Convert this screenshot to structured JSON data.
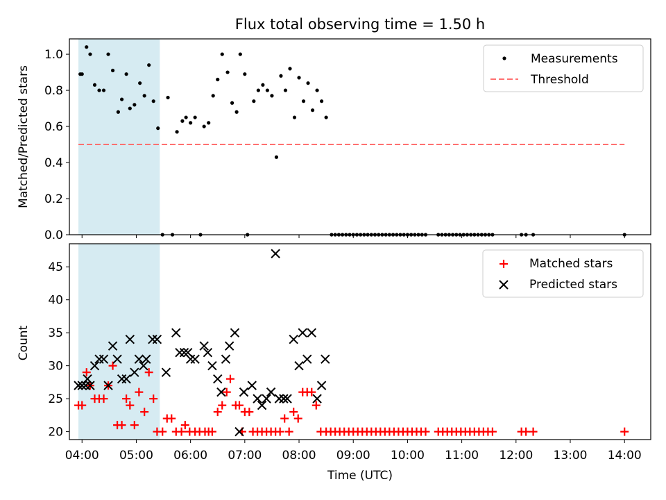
{
  "title": "Flux total observing time = 1.50 h",
  "colors": {
    "measurements": "#000000",
    "threshold": "#ff7070",
    "matched": "#ff0000",
    "predicted": "#000000",
    "shade": "#add8e6"
  },
  "chart_data": [
    {
      "type": "scatter",
      "ylabel": "Matched/Predicted stars",
      "xlim": [
        "03:46",
        "14:29"
      ],
      "ylim": [
        0,
        1.085
      ],
      "yticks": [
        "0.0",
        "0.2",
        "0.4",
        "0.6",
        "0.8",
        "1.0"
      ],
      "grid": false,
      "legend_position": "top-right",
      "shaded_region": [
        "03:56",
        "05:26"
      ],
      "series": [
        {
          "name": "Measurements",
          "marker": "dot",
          "points": [
            [
              "03:58",
              0.89
            ],
            [
              "04:00",
              0.89
            ],
            [
              "04:05",
              1.04
            ],
            [
              "04:09",
              1.0
            ],
            [
              "04:14",
              0.83
            ],
            [
              "04:19",
              0.8
            ],
            [
              "04:24",
              0.8
            ],
            [
              "04:29",
              1.0
            ],
            [
              "04:34",
              0.91
            ],
            [
              "04:40",
              0.68
            ],
            [
              "04:44",
              0.75
            ],
            [
              "04:49",
              0.89
            ],
            [
              "04:53",
              0.7
            ],
            [
              "04:58",
              0.72
            ],
            [
              "05:04",
              0.84
            ],
            [
              "05:09",
              0.77
            ],
            [
              "05:14",
              0.94
            ],
            [
              "05:19",
              0.74
            ],
            [
              "05:24",
              0.59
            ],
            [
              "05:29",
              0.0
            ],
            [
              "05:35",
              0.76
            ],
            [
              "05:40",
              0.0
            ],
            [
              "05:45",
              0.57
            ],
            [
              "05:51",
              0.63
            ],
            [
              "05:55",
              0.65
            ],
            [
              "06:00",
              0.62
            ],
            [
              "06:05",
              0.65
            ],
            [
              "06:11",
              0.0
            ],
            [
              "06:15",
              0.6
            ],
            [
              "06:20",
              0.62
            ],
            [
              "06:25",
              0.77
            ],
            [
              "06:30",
              0.86
            ],
            [
              "06:35",
              1.0
            ],
            [
              "06:41",
              0.9
            ],
            [
              "06:46",
              0.73
            ],
            [
              "06:51",
              0.68
            ],
            [
              "06:55",
              1.0
            ],
            [
              "07:00",
              0.89
            ],
            [
              "07:03",
              0.0
            ],
            [
              "07:10",
              0.74
            ],
            [
              "07:15",
              0.8
            ],
            [
              "07:20",
              0.83
            ],
            [
              "07:25",
              0.8
            ],
            [
              "07:30",
              0.77
            ],
            [
              "07:35",
              0.43
            ],
            [
              "07:40",
              0.88
            ],
            [
              "07:45",
              0.8
            ],
            [
              "07:50",
              0.92
            ],
            [
              "07:55",
              0.65
            ],
            [
              "08:00",
              0.87
            ],
            [
              "08:05",
              0.74
            ],
            [
              "08:10",
              0.84
            ],
            [
              "08:15",
              0.69
            ],
            [
              "08:20",
              0.8
            ],
            [
              "08:25",
              0.74
            ],
            [
              "08:30",
              0.65
            ],
            [
              "08:36",
              0.0
            ],
            [
              "08:40",
              0.0
            ],
            [
              "08:44",
              0.0
            ],
            [
              "08:48",
              0.0
            ],
            [
              "08:52",
              0.0
            ],
            [
              "08:56",
              0.0
            ],
            [
              "09:00",
              0.0
            ],
            [
              "09:04",
              0.0
            ],
            [
              "09:08",
              0.0
            ],
            [
              "09:12",
              0.0
            ],
            [
              "09:16",
              0.0
            ],
            [
              "09:20",
              0.0
            ],
            [
              "09:24",
              0.0
            ],
            [
              "09:28",
              0.0
            ],
            [
              "09:32",
              0.0
            ],
            [
              "09:36",
              0.0
            ],
            [
              "09:40",
              0.0
            ],
            [
              "09:44",
              0.0
            ],
            [
              "09:48",
              0.0
            ],
            [
              "09:52",
              0.0
            ],
            [
              "09:56",
              0.0
            ],
            [
              "10:00",
              0.0
            ],
            [
              "10:04",
              0.0
            ],
            [
              "10:08",
              0.0
            ],
            [
              "10:12",
              0.0
            ],
            [
              "10:16",
              0.0
            ],
            [
              "10:20",
              0.0
            ],
            [
              "10:34",
              0.0
            ],
            [
              "10:38",
              0.0
            ],
            [
              "10:42",
              0.0
            ],
            [
              "10:46",
              0.0
            ],
            [
              "10:50",
              0.0
            ],
            [
              "10:54",
              0.0
            ],
            [
              "10:58",
              0.0
            ],
            [
              "11:02",
              0.0
            ],
            [
              "11:06",
              0.0
            ],
            [
              "11:10",
              0.0
            ],
            [
              "11:14",
              0.0
            ],
            [
              "11:18",
              0.0
            ],
            [
              "11:22",
              0.0
            ],
            [
              "11:26",
              0.0
            ],
            [
              "11:30",
              0.0
            ],
            [
              "11:34",
              0.0
            ],
            [
              "12:06",
              0.0
            ],
            [
              "12:11",
              0.0
            ],
            [
              "12:19",
              0.0
            ],
            [
              "14:00",
              0.0
            ]
          ]
        },
        {
          "name": "Threshold",
          "marker": "dashed-line",
          "points": [
            [
              "03:56",
              0.5
            ],
            [
              "14:00",
              0.5
            ]
          ]
        }
      ]
    },
    {
      "type": "scatter",
      "ylabel": "Count",
      "xlabel": "Time (UTC)",
      "xlim": [
        "03:46",
        "14:29"
      ],
      "ylim": [
        18.8,
        48.5
      ],
      "yticks": [
        "20",
        "25",
        "30",
        "35",
        "40",
        "45"
      ],
      "xticks": [
        "04:00",
        "05:00",
        "06:00",
        "07:00",
        "08:00",
        "09:00",
        "10:00",
        "11:00",
        "12:00",
        "13:00",
        "14:00"
      ],
      "grid": false,
      "legend_position": "top-right",
      "shaded_region": [
        "03:56",
        "05:26"
      ],
      "series": [
        {
          "name": "Matched stars",
          "marker": "plus",
          "points": [
            [
              "03:56",
              24
            ],
            [
              "04:00",
              24
            ],
            [
              "04:05",
              29
            ],
            [
              "04:09",
              27
            ],
            [
              "04:14",
              25
            ],
            [
              "04:19",
              25
            ],
            [
              "04:24",
              25
            ],
            [
              "04:29",
              27
            ],
            [
              "04:34",
              30
            ],
            [
              "04:39",
              21
            ],
            [
              "04:44",
              21
            ],
            [
              "04:49",
              25
            ],
            [
              "04:53",
              24
            ],
            [
              "04:58",
              21
            ],
            [
              "05:03",
              26
            ],
            [
              "05:09",
              23
            ],
            [
              "05:14",
              29
            ],
            [
              "05:19",
              25
            ],
            [
              "05:23",
              20
            ],
            [
              "05:29",
              20
            ],
            [
              "05:34",
              22
            ],
            [
              "05:39",
              22
            ],
            [
              "05:44",
              20
            ],
            [
              "05:50",
              20
            ],
            [
              "05:54",
              21
            ],
            [
              "05:59",
              20
            ],
            [
              "06:05",
              20
            ],
            [
              "06:10",
              20
            ],
            [
              "06:16",
              20
            ],
            [
              "06:20",
              20
            ],
            [
              "06:24",
              20
            ],
            [
              "06:30",
              23
            ],
            [
              "06:35",
              24
            ],
            [
              "06:40",
              26
            ],
            [
              "06:44",
              28
            ],
            [
              "06:50",
              24
            ],
            [
              "06:54",
              24
            ],
            [
              "06:57",
              20
            ],
            [
              "07:00",
              23
            ],
            [
              "07:05",
              23
            ],
            [
              "07:09",
              20
            ],
            [
              "07:14",
              20
            ],
            [
              "07:19",
              20
            ],
            [
              "07:24",
              20
            ],
            [
              "07:29",
              20
            ],
            [
              "07:34",
              20
            ],
            [
              "07:39",
              20
            ],
            [
              "07:44",
              22
            ],
            [
              "07:49",
              20
            ],
            [
              "07:54",
              23
            ],
            [
              "07:59",
              22
            ],
            [
              "08:04",
              26
            ],
            [
              "08:09",
              26
            ],
            [
              "08:14",
              26
            ],
            [
              "08:19",
              24
            ],
            [
              "08:24",
              20
            ],
            [
              "08:30",
              20
            ],
            [
              "08:35",
              20
            ],
            [
              "08:40",
              20
            ],
            [
              "08:45",
              20
            ],
            [
              "08:50",
              20
            ],
            [
              "08:55",
              20
            ],
            [
              "09:00",
              20
            ],
            [
              "09:05",
              20
            ],
            [
              "09:10",
              20
            ],
            [
              "09:15",
              20
            ],
            [
              "09:20",
              20
            ],
            [
              "09:25",
              20
            ],
            [
              "09:30",
              20
            ],
            [
              "09:35",
              20
            ],
            [
              "09:40",
              20
            ],
            [
              "09:45",
              20
            ],
            [
              "09:50",
              20
            ],
            [
              "09:55",
              20
            ],
            [
              "10:00",
              20
            ],
            [
              "10:05",
              20
            ],
            [
              "10:10",
              20
            ],
            [
              "10:15",
              20
            ],
            [
              "10:20",
              20
            ],
            [
              "10:34",
              20
            ],
            [
              "10:39",
              20
            ],
            [
              "10:44",
              20
            ],
            [
              "10:49",
              20
            ],
            [
              "10:54",
              20
            ],
            [
              "10:59",
              20
            ],
            [
              "11:04",
              20
            ],
            [
              "11:09",
              20
            ],
            [
              "11:14",
              20
            ],
            [
              "11:19",
              20
            ],
            [
              "11:24",
              20
            ],
            [
              "11:29",
              20
            ],
            [
              "11:34",
              20
            ],
            [
              "12:06",
              20
            ],
            [
              "12:11",
              20
            ],
            [
              "12:19",
              20
            ],
            [
              "14:00",
              20
            ]
          ]
        },
        {
          "name": "Predicted stars",
          "marker": "x",
          "points": [
            [
              "03:56",
              27
            ],
            [
              "04:00",
              27
            ],
            [
              "04:04",
              27
            ],
            [
              "04:06",
              28
            ],
            [
              "04:09",
              27
            ],
            [
              "04:14",
              30
            ],
            [
              "04:19",
              31
            ],
            [
              "04:24",
              31
            ],
            [
              "04:29",
              27
            ],
            [
              "04:34",
              33
            ],
            [
              "04:39",
              31
            ],
            [
              "04:44",
              28
            ],
            [
              "04:49",
              28
            ],
            [
              "04:53",
              34
            ],
            [
              "04:58",
              29
            ],
            [
              "05:03",
              31
            ],
            [
              "05:08",
              30
            ],
            [
              "05:11",
              31
            ],
            [
              "05:18",
              34
            ],
            [
              "05:23",
              34
            ],
            [
              "05:33",
              29
            ],
            [
              "05:44",
              35
            ],
            [
              "05:48",
              32
            ],
            [
              "05:53",
              32
            ],
            [
              "05:57",
              32
            ],
            [
              "06:00",
              31
            ],
            [
              "06:05",
              31
            ],
            [
              "06:15",
              33
            ],
            [
              "06:19",
              32
            ],
            [
              "06:24",
              30
            ],
            [
              "06:30",
              28
            ],
            [
              "06:34",
              26
            ],
            [
              "06:39",
              31
            ],
            [
              "06:43",
              33
            ],
            [
              "06:49",
              35
            ],
            [
              "06:54",
              20
            ],
            [
              "06:59",
              26
            ],
            [
              "07:08",
              27
            ],
            [
              "07:14",
              25
            ],
            [
              "07:19",
              24
            ],
            [
              "07:24",
              25
            ],
            [
              "07:29",
              26
            ],
            [
              "07:34",
              47
            ],
            [
              "07:38",
              25
            ],
            [
              "07:43",
              25
            ],
            [
              "07:47",
              25
            ],
            [
              "07:54",
              34
            ],
            [
              "08:00",
              30
            ],
            [
              "08:04",
              35
            ],
            [
              "08:09",
              31
            ],
            [
              "08:14",
              35
            ],
            [
              "08:20",
              25
            ],
            [
              "08:25",
              27
            ],
            [
              "08:29",
              31
            ]
          ]
        }
      ]
    }
  ]
}
